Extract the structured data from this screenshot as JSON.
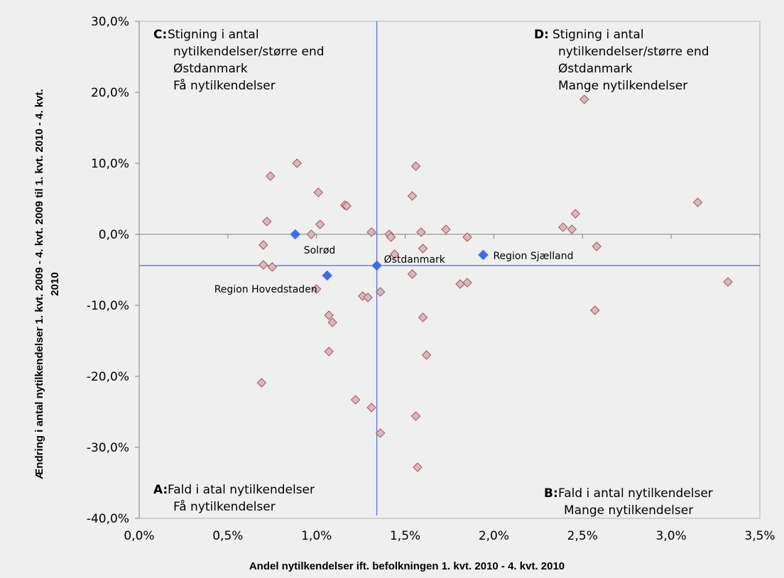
{
  "chart_data": {
    "type": "scatter",
    "xlabel": "Andel nytilkendelser ift. befolkningen 1. kvt. 2010 - 4. kvt. 2010",
    "ylabel_lines": [
      "Ændring i antal nytilkendelser 1. kvt. 2009 - 4. kvt. 2009 til 1. kvt. 2010 - 4. kvt.",
      "2010"
    ],
    "xlim": [
      0,
      3.5
    ],
    "ylim": [
      -40,
      30
    ],
    "x_ticks": [
      0,
      0.5,
      1.0,
      1.5,
      2.0,
      2.5,
      3.0,
      3.5
    ],
    "x_tick_labels": [
      "0,0%",
      "0,5%",
      "1,0%",
      "1,5%",
      "2,0%",
      "2,5%",
      "3,0%",
      "3,5%"
    ],
    "y_ticks": [
      30,
      20,
      10,
      0,
      -10,
      -20,
      -30,
      -40
    ],
    "y_tick_labels": [
      "30,0%",
      "20,0%",
      "10,0%",
      "0,0%",
      "-10,0%",
      "-20,0%",
      "-30,0%",
      "-40,0%"
    ],
    "reference_lines": {
      "x": 1.34,
      "y": -4.4
    },
    "colors": {
      "municipality": "#c8c0c8",
      "municipality_stroke": "#c0504d",
      "highlight": "#3b6cf0",
      "reference_line": "#4a6de0",
      "zero_line": "#808080"
    },
    "series": [
      {
        "points": [
          [
            0.7,
            -1.5
          ],
          [
            0.7,
            -4.3
          ],
          [
            0.72,
            1.8
          ],
          [
            0.74,
            8.2
          ],
          [
            0.75,
            -4.6
          ],
          [
            0.69,
            -20.9
          ],
          [
            0.89,
            10.0
          ],
          [
            0.97,
            0.0
          ],
          [
            1.0,
            -7.7
          ],
          [
            1.01,
            5.9
          ],
          [
            1.02,
            1.4
          ],
          [
            1.07,
            -11.4
          ],
          [
            1.07,
            -16.5
          ],
          [
            1.09,
            -12.4
          ],
          [
            1.16,
            4.1
          ],
          [
            1.17,
            4.0
          ],
          [
            1.22,
            -23.3
          ],
          [
            1.26,
            -8.7
          ],
          [
            1.29,
            -8.9
          ],
          [
            1.31,
            0.3
          ],
          [
            1.31,
            -24.4
          ],
          [
            1.36,
            -8.1
          ],
          [
            1.36,
            -28.0
          ],
          [
            1.41,
            0.0
          ],
          [
            1.42,
            -0.4
          ],
          [
            1.44,
            -2.8
          ],
          [
            1.54,
            5.4
          ],
          [
            1.54,
            -5.6
          ],
          [
            1.56,
            9.6
          ],
          [
            1.56,
            -25.6
          ],
          [
            1.57,
            -32.8
          ],
          [
            1.59,
            0.3
          ],
          [
            1.6,
            -2.0
          ],
          [
            1.6,
            -11.7
          ],
          [
            1.62,
            -17.0
          ],
          [
            1.73,
            0.7
          ],
          [
            1.81,
            -7.0
          ],
          [
            1.85,
            -6.8
          ],
          [
            1.85,
            -0.4
          ],
          [
            2.39,
            1.0
          ],
          [
            2.44,
            0.7
          ],
          [
            2.46,
            2.9
          ],
          [
            2.51,
            19.0
          ],
          [
            2.57,
            -10.7
          ],
          [
            2.58,
            -1.7
          ],
          [
            3.15,
            4.5
          ],
          [
            3.32,
            -6.7
          ]
        ]
      },
      {
        "points": [
          {
            "label": "Solrød",
            "x": 0.88,
            "y": 0.0
          },
          {
            "label": "Region Hovedstaden",
            "x": 1.06,
            "y": -5.8
          },
          {
            "label": "Østdanmark",
            "x": 1.34,
            "y": -4.4
          },
          {
            "label": "Region Sjælland",
            "x": 1.94,
            "y": -2.9
          }
        ]
      }
    ],
    "annotations": [
      {
        "letter": "C:",
        "lines": [
          "Stigning i antal",
          "nytilkendelser/større end",
          "Østdanmark",
          "Få nytilkendelser"
        ]
      },
      {
        "letter": "D:",
        "lines": [
          "Stigning i antal",
          "nytilkendelser/større end",
          "Østdanmark",
          "Mange nytilkendelser"
        ]
      },
      {
        "letter": "A:",
        "lines": [
          "Fald i atal nytilkendelser",
          "Få nytilkendelser"
        ]
      },
      {
        "letter": "B:",
        "lines": [
          "Fald i antal nytilkendelser",
          "Mange nytilkendelser"
        ]
      }
    ]
  }
}
